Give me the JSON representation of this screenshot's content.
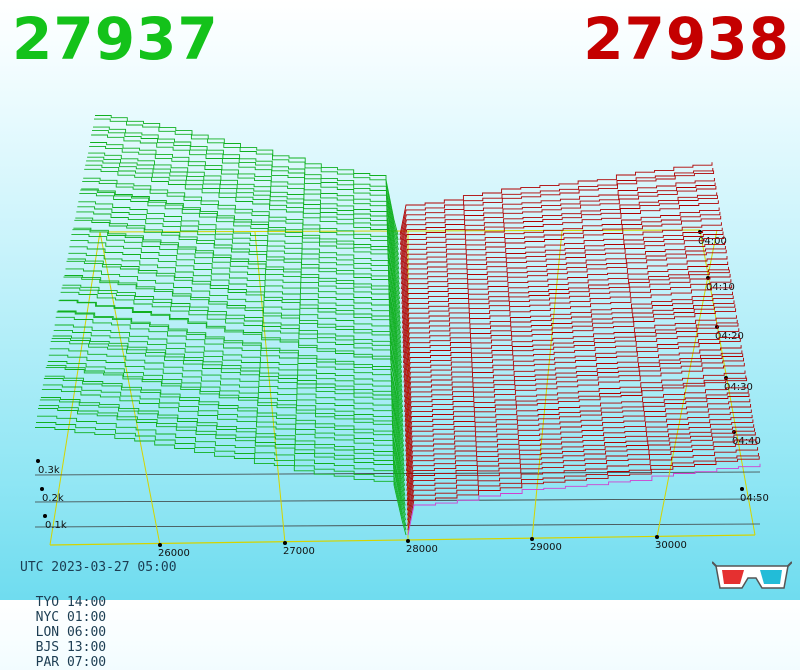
{
  "header": {
    "bid_price": "27937",
    "ask_price": "27938",
    "bid_color": "#14c21a",
    "ask_color": "#c40000"
  },
  "footer": {
    "utc": "UTC 2023-03-27 05:00",
    "zones": [
      "TYO 14:00",
      "NYC 01:00",
      "LON 06:00",
      "BJS 13:00",
      "PAR 07:00"
    ]
  },
  "icons": {
    "glasses": "3d-glasses-icon"
  },
  "chart_data": {
    "type": "area",
    "x_axis": {
      "ticks": [
        26000,
        27000,
        28000,
        29000,
        30000
      ]
    },
    "depth_axis": {
      "ticks": [
        "04:00",
        "04:10",
        "04:20",
        "04:30",
        "04:40",
        "04:50"
      ]
    },
    "z_axis": {
      "ticks": [
        "0.1k",
        "0.2k",
        "0.3k"
      ]
    },
    "series": [
      {
        "side": "bid",
        "color": "#10b020"
      },
      {
        "side": "ask",
        "color": "#b00000"
      }
    ]
  }
}
